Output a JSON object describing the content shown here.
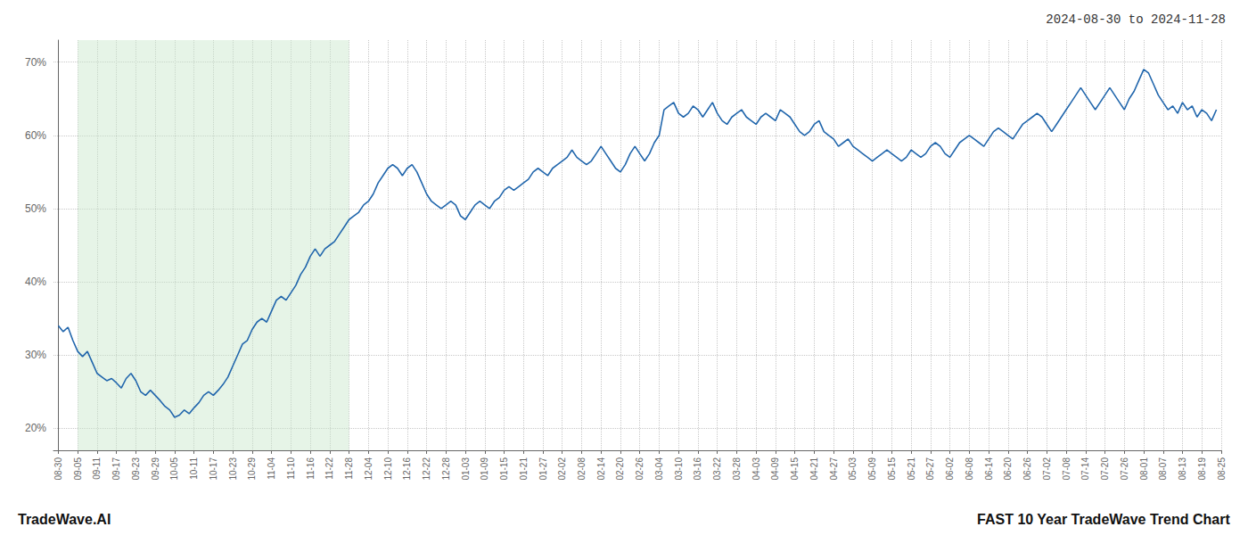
{
  "chart_data": {
    "type": "line",
    "title": "2024-08-30 to 2024-11-28",
    "annotations": [
      "TradeWave.AI",
      "FAST 10 Year TradeWave Trend Chart"
    ],
    "color": "#2166ac",
    "grid": true,
    "shade": {
      "x": [
        4,
        60
      ],
      "color": "#c8e6c9"
    },
    "xlim": [
      -1,
      240
    ],
    "xticks": [
      {
        "value": 0,
        "label": "08-30"
      },
      {
        "value": 4,
        "label": "09-05"
      },
      {
        "value": 8,
        "label": "09-11"
      },
      {
        "value": 12,
        "label": "09-17"
      },
      {
        "value": 16,
        "label": "09-23"
      },
      {
        "value": 20,
        "label": "09-29"
      },
      {
        "value": 24,
        "label": "10-05"
      },
      {
        "value": 28,
        "label": "10-11"
      },
      {
        "value": 32,
        "label": "10-17"
      },
      {
        "value": 36,
        "label": "10-23"
      },
      {
        "value": 40,
        "label": "10-29"
      },
      {
        "value": 44,
        "label": "11-04"
      },
      {
        "value": 48,
        "label": "11-10"
      },
      {
        "value": 52,
        "label": "11-16"
      },
      {
        "value": 56,
        "label": "11-22"
      },
      {
        "value": 60,
        "label": "11-28"
      },
      {
        "value": 64,
        "label": "12-04"
      },
      {
        "value": 68,
        "label": "12-10"
      },
      {
        "value": 72,
        "label": "12-16"
      },
      {
        "value": 76,
        "label": "12-22"
      },
      {
        "value": 80,
        "label": "12-28"
      },
      {
        "value": 84,
        "label": "01-03"
      },
      {
        "value": 88,
        "label": "01-09"
      },
      {
        "value": 92,
        "label": "01-15"
      },
      {
        "value": 96,
        "label": "01-21"
      },
      {
        "value": 100,
        "label": "01-27"
      },
      {
        "value": 104,
        "label": "02-02"
      },
      {
        "value": 108,
        "label": "02-08"
      },
      {
        "value": 112,
        "label": "02-14"
      },
      {
        "value": 116,
        "label": "02-20"
      },
      {
        "value": 120,
        "label": "02-26"
      },
      {
        "value": 124,
        "label": "03-04"
      },
      {
        "value": 128,
        "label": "03-10"
      },
      {
        "value": 132,
        "label": "03-16"
      },
      {
        "value": 136,
        "label": "03-22"
      },
      {
        "value": 140,
        "label": "03-28"
      },
      {
        "value": 144,
        "label": "04-03"
      },
      {
        "value": 148,
        "label": "04-09"
      },
      {
        "value": 152,
        "label": "04-15"
      },
      {
        "value": 156,
        "label": "04-21"
      },
      {
        "value": 160,
        "label": "04-27"
      },
      {
        "value": 164,
        "label": "05-03"
      },
      {
        "value": 168,
        "label": "05-09"
      },
      {
        "value": 172,
        "label": "05-15"
      },
      {
        "value": 176,
        "label": "05-21"
      },
      {
        "value": 180,
        "label": "05-27"
      },
      {
        "value": 184,
        "label": "06-02"
      },
      {
        "value": 188,
        "label": "06-08"
      },
      {
        "value": 192,
        "label": "06-14"
      },
      {
        "value": 196,
        "label": "06-20"
      },
      {
        "value": 200,
        "label": "06-26"
      },
      {
        "value": 204,
        "label": "07-02"
      },
      {
        "value": 208,
        "label": "07-08"
      },
      {
        "value": 212,
        "label": "07-14"
      },
      {
        "value": 216,
        "label": "07-20"
      },
      {
        "value": 220,
        "label": "07-26"
      },
      {
        "value": 224,
        "label": "08-01"
      },
      {
        "value": 228,
        "label": "08-07"
      },
      {
        "value": 232,
        "label": "08-13"
      },
      {
        "value": 236,
        "label": "08-19"
      },
      {
        "value": 240,
        "label": "08-25"
      }
    ],
    "ylim": [
      17,
      73
    ],
    "yticks": [
      {
        "value": 20,
        "label": "20%"
      },
      {
        "value": 30,
        "label": "30%"
      },
      {
        "value": 40,
        "label": "40%"
      },
      {
        "value": 50,
        "label": "50%"
      },
      {
        "value": 60,
        "label": "60%"
      },
      {
        "value": 70,
        "label": "70%"
      }
    ],
    "x": [
      0,
      1,
      2,
      3,
      4,
      5,
      6,
      7,
      8,
      9,
      10,
      11,
      12,
      13,
      14,
      15,
      16,
      17,
      18,
      19,
      20,
      21,
      22,
      23,
      24,
      25,
      26,
      27,
      28,
      29,
      30,
      31,
      32,
      33,
      34,
      35,
      36,
      37,
      38,
      39,
      40,
      41,
      42,
      43,
      44,
      45,
      46,
      47,
      48,
      49,
      50,
      51,
      52,
      53,
      54,
      55,
      56,
      57,
      58,
      59,
      60,
      61,
      62,
      63,
      64,
      65,
      66,
      67,
      68,
      69,
      70,
      71,
      72,
      73,
      74,
      75,
      76,
      77,
      78,
      79,
      80,
      81,
      82,
      83,
      84,
      85,
      86,
      87,
      88,
      89,
      90,
      91,
      92,
      93,
      94,
      95,
      96,
      97,
      98,
      99,
      100,
      101,
      102,
      103,
      104,
      105,
      106,
      107,
      108,
      109,
      110,
      111,
      112,
      113,
      114,
      115,
      116,
      117,
      118,
      119,
      120,
      121,
      122,
      123,
      124,
      125,
      126,
      127,
      128,
      129,
      130,
      131,
      132,
      133,
      134,
      135,
      136,
      137,
      138,
      139,
      140,
      141,
      142,
      143,
      144,
      145,
      146,
      147,
      148,
      149,
      150,
      151,
      152,
      153,
      154,
      155,
      156,
      157,
      158,
      159,
      160,
      161,
      162,
      163,
      164,
      165,
      166,
      167,
      168,
      169,
      170,
      171,
      172,
      173,
      174,
      175,
      176,
      177,
      178,
      179,
      180,
      181,
      182,
      183,
      184,
      185,
      186,
      187,
      188,
      189,
      190,
      191,
      192,
      193,
      194,
      195,
      196,
      197,
      198,
      199,
      200,
      201,
      202,
      203,
      204,
      205,
      206,
      207,
      208,
      209,
      210,
      211,
      212,
      213,
      214,
      215,
      216,
      217,
      218,
      219,
      220,
      221,
      222,
      223,
      224,
      225,
      226,
      227,
      228,
      229,
      230,
      231,
      232,
      233,
      234,
      235,
      236,
      237,
      238,
      239
    ],
    "values": [
      34.0,
      33.2,
      33.8,
      32.0,
      30.5,
      29.8,
      30.5,
      29.0,
      27.5,
      27.0,
      26.5,
      26.8,
      26.2,
      25.5,
      26.8,
      27.5,
      26.5,
      25.0,
      24.5,
      25.2,
      24.5,
      23.8,
      23.0,
      22.5,
      21.5,
      21.8,
      22.5,
      22.0,
      22.8,
      23.5,
      24.5,
      25.0,
      24.5,
      25.2,
      26.0,
      27.0,
      28.5,
      30.0,
      31.5,
      32.0,
      33.5,
      34.5,
      35.0,
      34.5,
      36.0,
      37.5,
      38.0,
      37.5,
      38.5,
      39.5,
      41.0,
      42.0,
      43.5,
      44.5,
      43.5,
      44.5,
      45.0,
      45.5,
      46.5,
      47.5,
      48.5,
      49.0,
      49.5,
      50.5,
      51.0,
      52.0,
      53.5,
      54.5,
      55.5,
      56.0,
      55.5,
      54.5,
      55.5,
      56.0,
      55.0,
      53.5,
      52.0,
      51.0,
      50.5,
      50.0,
      50.5,
      51.0,
      50.5,
      49.0,
      48.5,
      49.5,
      50.5,
      51.0,
      50.5,
      50.0,
      51.0,
      51.5,
      52.5,
      53.0,
      52.5,
      53.0,
      53.5,
      54.0,
      55.0,
      55.5,
      55.0,
      54.5,
      55.5,
      56.0,
      56.5,
      57.0,
      58.0,
      57.0,
      56.5,
      56.0,
      56.5,
      57.5,
      58.5,
      57.5,
      56.5,
      55.5,
      55.0,
      56.0,
      57.5,
      58.5,
      57.5,
      56.5,
      57.5,
      59.0,
      60.0,
      63.5,
      64.0,
      64.5,
      63.0,
      62.5,
      63.0,
      64.0,
      63.5,
      62.5,
      63.5,
      64.5,
      63.0,
      62.0,
      61.5,
      62.5,
      63.0,
      63.5,
      62.5,
      62.0,
      61.5,
      62.5,
      63.0,
      62.5,
      62.0,
      63.5,
      63.0,
      62.5,
      61.5,
      60.5,
      60.0,
      60.5,
      61.5,
      62.0,
      60.5,
      60.0,
      59.5,
      58.5,
      59.0,
      59.5,
      58.5,
      58.0,
      57.5,
      57.0,
      56.5,
      57.0,
      57.5,
      58.0,
      57.5,
      57.0,
      56.5,
      57.0,
      58.0,
      57.5,
      57.0,
      57.5,
      58.5,
      59.0,
      58.5,
      57.5,
      57.0,
      58.0,
      59.0,
      59.5,
      60.0,
      59.5,
      59.0,
      58.5,
      59.5,
      60.5,
      61.0,
      60.5,
      60.0,
      59.5,
      60.5,
      61.5,
      62.0,
      62.5,
      63.0,
      62.5,
      61.5,
      60.5,
      61.5,
      62.5,
      63.5,
      64.5,
      65.5,
      66.5,
      65.5,
      64.5,
      63.5,
      64.5,
      65.5,
      66.5,
      65.5,
      64.5,
      63.5,
      65.0,
      66.0,
      67.5,
      69.0,
      68.5,
      67.0,
      65.5,
      64.5,
      63.5,
      64.0,
      63.0,
      64.5,
      63.5,
      64.0,
      62.5,
      63.5,
      63.0,
      62.0,
      63.5
    ]
  }
}
